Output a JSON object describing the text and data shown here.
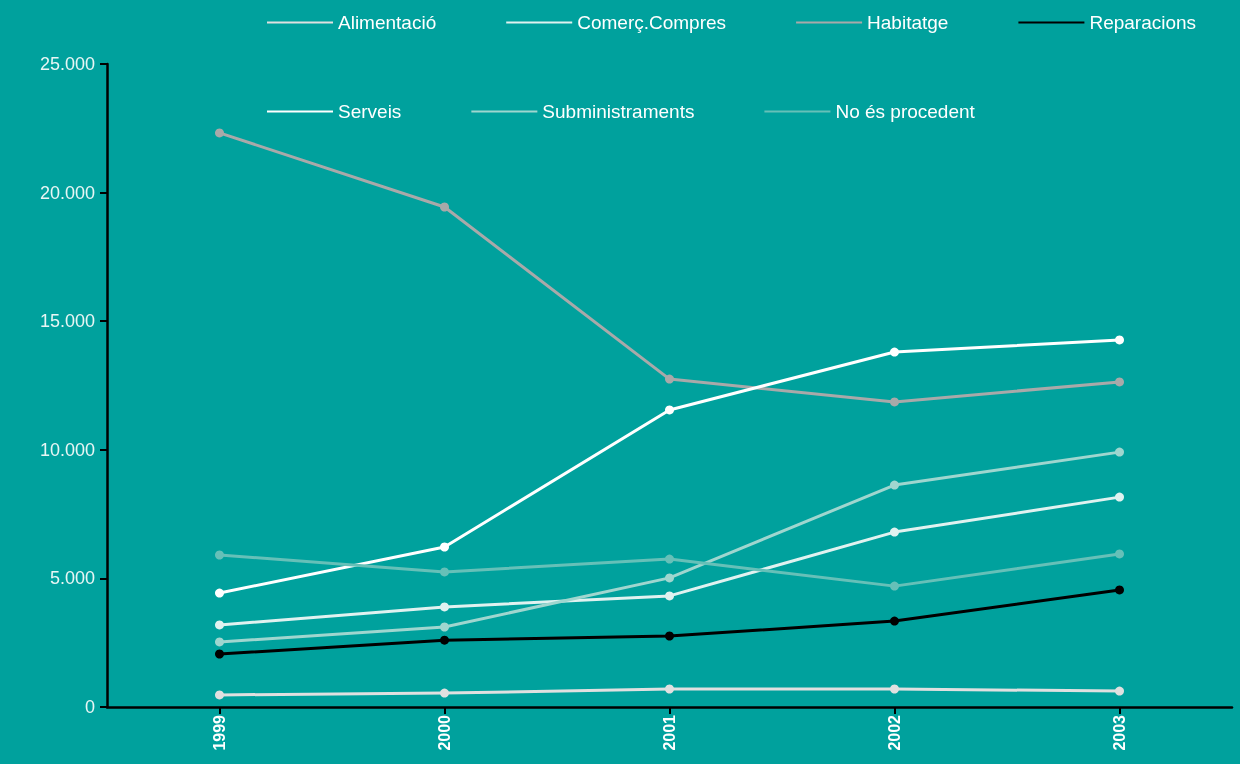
{
  "chart_data": {
    "type": "line",
    "categories": [
      "1999",
      "2000",
      "2001",
      "2002",
      "2003"
    ],
    "series": [
      {
        "name": "Alimentació",
        "color": "#e0e0e0",
        "values": [
          470,
          540,
          700,
          700,
          620
        ]
      },
      {
        "name": "Comerç.Compres",
        "color": "#e0f2f0",
        "values": [
          3190,
          3890,
          4320,
          6800,
          8160
        ]
      },
      {
        "name": "Habitatge",
        "color": "#a9a9a9",
        "values": [
          22320,
          19440,
          12750,
          11860,
          12640
        ]
      },
      {
        "name": "Reparacions",
        "color": "#000000",
        "values": [
          2060,
          2600,
          2760,
          3340,
          4550
        ]
      },
      {
        "name": "Serveis",
        "color": "#ffffff",
        "values": [
          4430,
          6220,
          11550,
          13800,
          14270
        ]
      },
      {
        "name": "Subministraments",
        "color": "#9fd6cf",
        "values": [
          2530,
          3110,
          5020,
          8630,
          9910
        ]
      },
      {
        "name": "No és procedent",
        "color": "#66c0b8",
        "values": [
          5910,
          5250,
          5750,
          4700,
          5950
        ]
      }
    ],
    "ylim": [
      0,
      25000
    ],
    "yticks": [
      {
        "value": 0,
        "label": "0"
      },
      {
        "value": 5000,
        "label": "5.000"
      },
      {
        "value": 10000,
        "label": "10.000"
      },
      {
        "value": 15000,
        "label": "15.000"
      },
      {
        "value": 20000,
        "label": "20.000"
      },
      {
        "value": 25000,
        "label": "25.000"
      }
    ],
    "grid": false,
    "legend": "top",
    "marker": "circle",
    "line_style": "solid"
  }
}
